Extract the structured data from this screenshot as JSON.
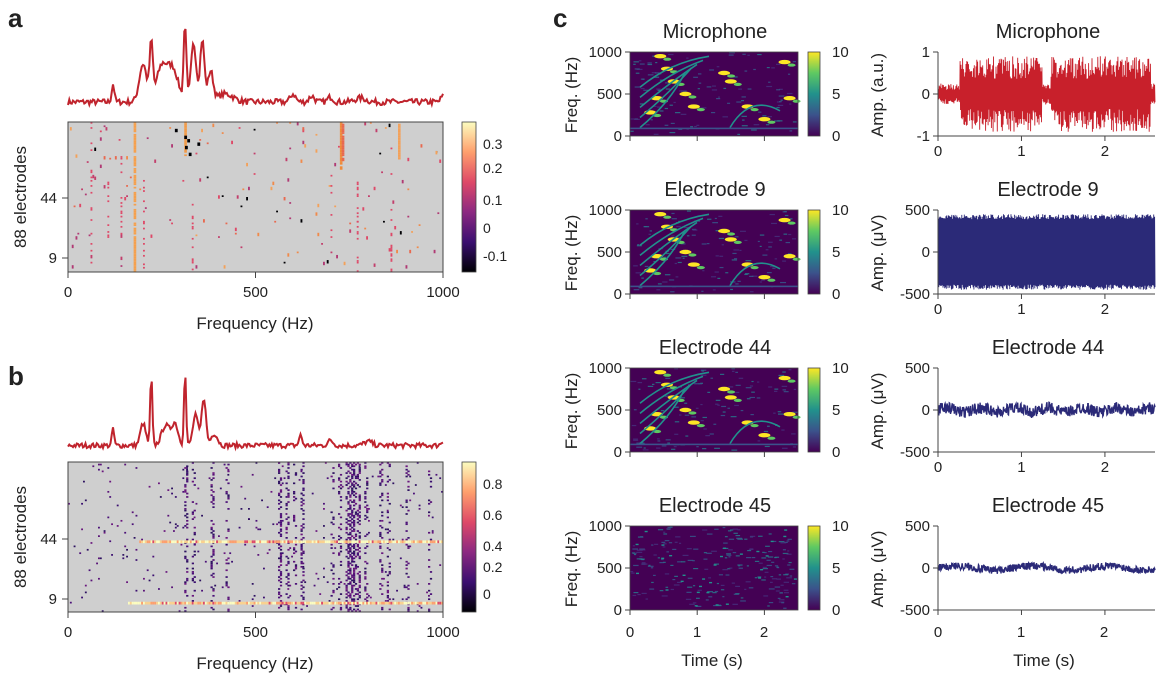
{
  "panel_letters": {
    "a": "a",
    "b": "b",
    "c": "c"
  },
  "panel_a": {
    "spectrum_color": "#c0242d",
    "heatmap_bg": "#cfcfcf",
    "xlabel": "Frequency (Hz)",
    "ylabel": "88 electrodes",
    "x_ticks": [
      "0",
      "500",
      "1000"
    ],
    "y_ticks": [
      "44",
      "9"
    ],
    "colorbar_ticks": [
      "0.3",
      "0.2",
      "0.1",
      "0",
      "-0.1"
    ]
  },
  "panel_b": {
    "spectrum_color": "#c0242d",
    "heatmap_bg": "#cfcfcf",
    "xlabel": "Frequency (Hz)",
    "ylabel": "88 electrodes",
    "x_ticks": [
      "0",
      "500",
      "1000"
    ],
    "y_ticks": [
      "44",
      "9"
    ],
    "colorbar_ticks": [
      "0.8",
      "0.6",
      "0.4",
      "0.2",
      "0"
    ]
  },
  "panel_c": {
    "rows": [
      {
        "title": "Microphone",
        "spec_ylabel": "Freq. (Hz)",
        "wave_ylabel": "Amp. (a.u.)",
        "wave_ticks": [
          "1",
          "0",
          "-1"
        ],
        "wave_color": "#c8202b"
      },
      {
        "title": "Electrode 9",
        "spec_ylabel": "Freq. (Hz)",
        "wave_ylabel": "Amp. (μV)",
        "wave_ticks": [
          "500",
          "0",
          "-500"
        ],
        "wave_color": "#2b2a78"
      },
      {
        "title": "Electrode 44",
        "spec_ylabel": "Freq. (Hz)",
        "wave_ylabel": "Amp. (μV)",
        "wave_ticks": [
          "500",
          "0",
          "-500"
        ],
        "wave_color": "#2b2a78"
      },
      {
        "title": "Electrode 45",
        "spec_ylabel": "Freq. (Hz)",
        "wave_ylabel": "Amp. (μV)",
        "wave_ticks": [
          "500",
          "0",
          "-500"
        ],
        "wave_color": "#2b2a78"
      }
    ],
    "spec_yticks": [
      "1000",
      "500",
      "0"
    ],
    "colorbar_ticks": [
      "10",
      "5",
      "0"
    ],
    "spec_xticks": [
      "0",
      "1",
      "2"
    ],
    "wave_xticks": [
      "0",
      "1",
      "2"
    ],
    "xlabel": "Time (s)"
  },
  "chart_data": [
    {
      "type": "heatmap",
      "panel": "a",
      "xlabel": "Frequency (Hz)",
      "ylabel": "88 electrodes",
      "xlim": [
        0,
        1000
      ],
      "x_ticks": [
        0,
        500,
        1000
      ],
      "y_ticks": [
        "44",
        "9"
      ],
      "colorbar_range": [
        -0.15,
        0.35
      ],
      "colorbar_ticks": [
        0.3,
        0.2,
        0.1,
        0,
        -0.1
      ],
      "colormap": "inferno",
      "spectrum_peaks_hz": [
        120,
        220,
        310,
        350
      ],
      "strong_columns_hz": [
        175,
        310,
        725,
        880
      ]
    },
    {
      "type": "heatmap",
      "panel": "b",
      "xlabel": "Frequency (Hz)",
      "ylabel": "88 electrodes",
      "xlim": [
        0,
        1000
      ],
      "x_ticks": [
        0,
        500,
        1000
      ],
      "y_ticks": [
        "44",
        "9"
      ],
      "colorbar_range": [
        -0.05,
        0.95
      ],
      "colorbar_ticks": [
        0.8,
        0.6,
        0.4,
        0.2,
        0
      ],
      "colormap": "inferno",
      "spectrum_peaks_hz": [
        220,
        310,
        360
      ],
      "highlighted_rows": [
        "44",
        "9"
      ]
    },
    {
      "type": "heatmap",
      "panel": "c",
      "subplots": [
        "Microphone",
        "Electrode 9",
        "Electrode 44",
        "Electrode 45"
      ],
      "xlabel": "Time (s)",
      "ylabel": "Freq. (Hz)",
      "xlim": [
        0,
        2.5
      ],
      "ylim": [
        0,
        1000
      ],
      "colorbar_range": [
        0,
        10
      ],
      "colormap": "viridis"
    },
    {
      "type": "line",
      "panel": "c",
      "series": [
        {
          "name": "Microphone",
          "ylim": [
            -1,
            1
          ],
          "y_ticks": [
            1,
            0,
            -1
          ]
        },
        {
          "name": "Electrode 9",
          "ylim": [
            -500,
            500
          ],
          "y_ticks": [
            500,
            0,
            -500
          ]
        },
        {
          "name": "Electrode 44",
          "ylim": [
            -500,
            500
          ],
          "y_ticks": [
            500,
            0,
            -500
          ]
        },
        {
          "name": "Electrode 45",
          "ylim": [
            -500,
            500
          ],
          "y_ticks": [
            500,
            0,
            -500
          ]
        }
      ],
      "xlabel": "Time (s)",
      "xlim": [
        0,
        2.6
      ],
      "x_ticks": [
        0,
        1,
        2
      ]
    }
  ]
}
